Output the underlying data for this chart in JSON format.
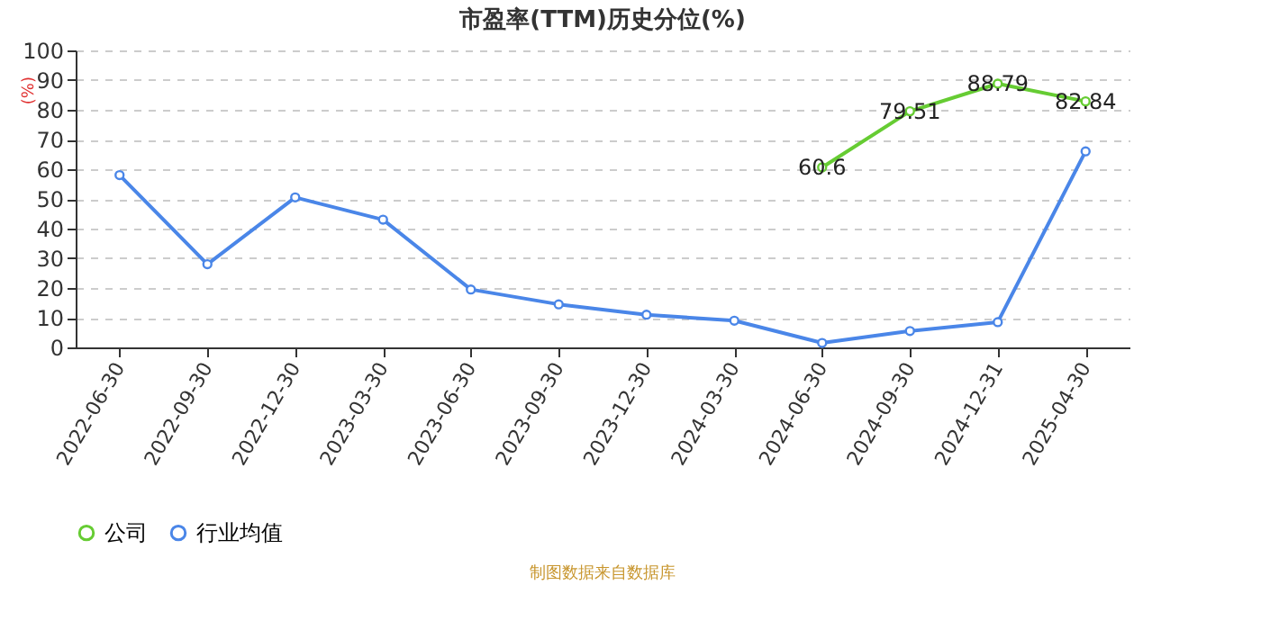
{
  "chart_data": {
    "type": "line",
    "title": "市盈率(TTM)历史分位(%)",
    "ylabel": "(%)",
    "categories": [
      "2022-06-30",
      "2022-09-30",
      "2022-12-30",
      "2023-03-30",
      "2023-06-30",
      "2023-09-30",
      "2023-12-30",
      "2024-03-30",
      "2024-06-30",
      "2024-09-30",
      "2024-12-31",
      "2025-04-30"
    ],
    "series": [
      {
        "name": "公司",
        "color": "#66cc33",
        "values": [
          null,
          null,
          null,
          null,
          null,
          null,
          null,
          null,
          60.6,
          79.51,
          88.79,
          82.84
        ],
        "value_labels": [
          null,
          null,
          null,
          null,
          null,
          null,
          null,
          null,
          "60.6",
          "79.51",
          "88.79",
          "82.84"
        ]
      },
      {
        "name": "行业均值",
        "color": "#4a86e8",
        "values": [
          58,
          28,
          50.5,
          43,
          19.5,
          14.5,
          11,
          9,
          1.5,
          5.5,
          8.5,
          66
        ]
      }
    ],
    "ylim": [
      0,
      100
    ],
    "yticks": [
      0,
      10,
      20,
      30,
      40,
      50,
      60,
      70,
      80,
      90,
      100
    ],
    "grid": "y",
    "legend": "bottom",
    "marker": "circle",
    "line_style": "solid",
    "annotations": [
      "制图数据来自数据库"
    ]
  }
}
